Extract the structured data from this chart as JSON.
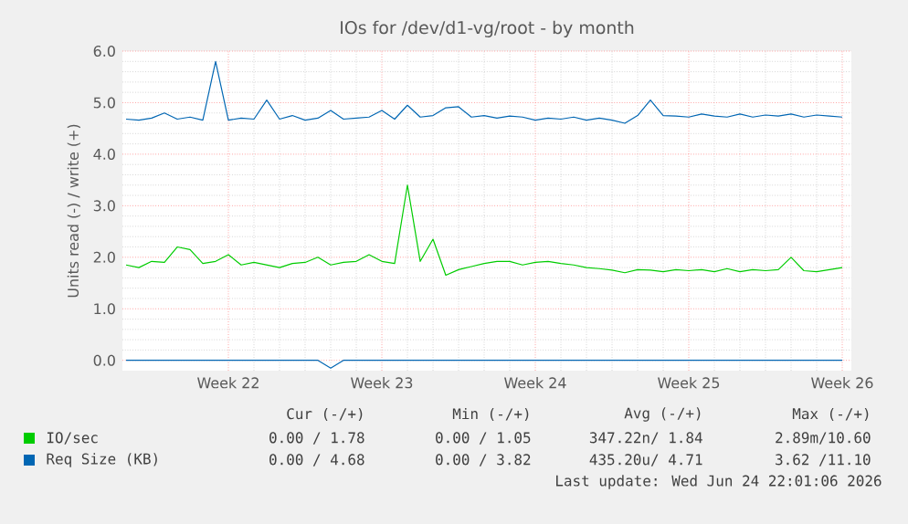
{
  "chart_data": {
    "type": "line",
    "title": "IOs for /dev/d1-vg/root - by month",
    "ylabel": "Units read (-) / write (+)",
    "categories": [
      null,
      null,
      null,
      null,
      null,
      null,
      null,
      null,
      "Week 22",
      null,
      null,
      null,
      null,
      null,
      null,
      null,
      null,
      null,
      null,
      null,
      "Week 23",
      null,
      null,
      null,
      null,
      null,
      null,
      null,
      null,
      null,
      null,
      null,
      "Week 24",
      null,
      null,
      null,
      null,
      null,
      null,
      null,
      null,
      null,
      null,
      null,
      "Week 25",
      null,
      null,
      null,
      null,
      null,
      null,
      null,
      null,
      null,
      null,
      null,
      "Week 26"
    ],
    "ylim": [
      -0.2,
      6.0
    ],
    "yticks": [
      {
        "value": 0,
        "label": "0.0"
      },
      {
        "value": 1,
        "label": "1.0"
      },
      {
        "value": 2,
        "label": "2.0"
      },
      {
        "value": 3,
        "label": "3.0"
      },
      {
        "value": 4,
        "label": "4.0"
      },
      {
        "value": 5,
        "label": "5.0"
      },
      {
        "value": 6,
        "label": "6.0"
      }
    ],
    "grid": true,
    "legend": "bottom",
    "marker": "none",
    "line_style": "solid",
    "series": [
      {
        "name": "IO/sec",
        "color": "#00cc00",
        "values": [
          1.85,
          1.8,
          1.92,
          1.9,
          2.2,
          2.15,
          1.88,
          1.92,
          2.05,
          1.85,
          1.9,
          1.85,
          1.8,
          1.88,
          1.9,
          2.0,
          1.85,
          1.9,
          1.92,
          2.05,
          1.92,
          1.88,
          3.4,
          1.92,
          2.35,
          1.65,
          1.76,
          1.82,
          1.88,
          1.92,
          1.92,
          1.85,
          1.9,
          1.92,
          1.88,
          1.85,
          1.8,
          1.78,
          1.75,
          1.7,
          1.76,
          1.75,
          1.72,
          1.76,
          1.74,
          1.76,
          1.72,
          1.78,
          1.72,
          1.76,
          1.74,
          1.76,
          2.0,
          1.74,
          1.72,
          1.76,
          1.8
        ]
      },
      {
        "name": "Req Size (KB)",
        "color": "#0066b3",
        "values": [
          4.68,
          4.66,
          4.7,
          4.8,
          4.68,
          4.72,
          4.66,
          5.8,
          4.66,
          4.7,
          4.68,
          5.05,
          4.68,
          4.75,
          4.66,
          4.7,
          4.85,
          4.68,
          4.7,
          4.72,
          4.85,
          4.68,
          4.95,
          4.72,
          4.75,
          4.9,
          4.92,
          4.72,
          4.75,
          4.7,
          4.74,
          4.72,
          4.66,
          4.7,
          4.68,
          4.72,
          4.66,
          4.7,
          4.66,
          4.6,
          4.75,
          5.05,
          4.75,
          4.74,
          4.72,
          4.78,
          4.74,
          4.72,
          4.78,
          4.72,
          4.76,
          4.74,
          4.78,
          4.72,
          4.76,
          4.74,
          4.72
        ]
      },
      {
        "color": "#0066b3",
        "values": [
          0,
          0,
          0,
          0,
          0,
          0,
          0,
          0,
          0,
          0,
          0,
          0,
          0,
          0,
          0,
          0,
          -0.15,
          0,
          0,
          0,
          0,
          0,
          0,
          0,
          0,
          0,
          0,
          0,
          0,
          0,
          0,
          0,
          0,
          0,
          0,
          0,
          0,
          0,
          0,
          0,
          0,
          0,
          0,
          0,
          0,
          0,
          0,
          0,
          0,
          0,
          0,
          0,
          0,
          0,
          0,
          0,
          0
        ]
      }
    ],
    "annotations": [
      "Cur (-/+)",
      "Min (-/+)",
      "Avg (-/+)",
      "Max (-/+)",
      "0.00 / 1.78",
      "0.00 / 1.05",
      "347.22n/ 1.84",
      "2.89m/10.60",
      "0.00 / 4.68",
      "0.00 / 3.82",
      "435.20u/ 4.71",
      "3.62 /11.10",
      "Last update: Wed Jun 24 22:01:06 2026"
    ]
  }
}
